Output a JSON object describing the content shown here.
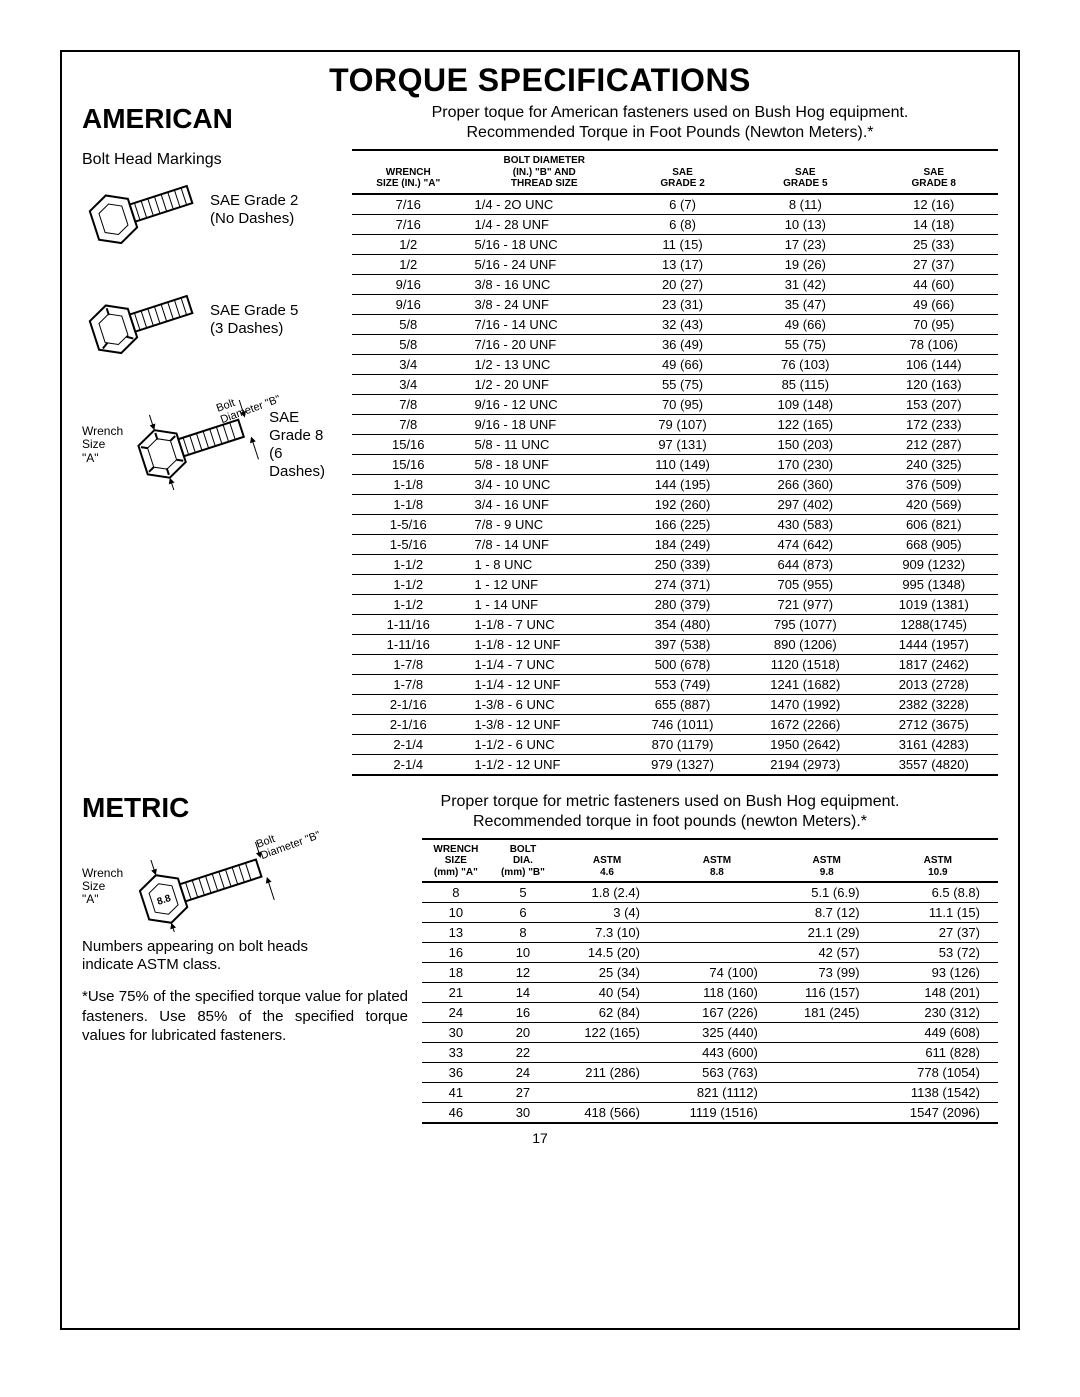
{
  "page_number": "17",
  "title": "TORQUE SPECIFICATIONS",
  "american": {
    "heading": "AMERICAN",
    "intro_line1": "Proper toque for American fasteners used on Bush Hog equipment.",
    "intro_line2": "Recommended Torque in Foot Pounds (Newton Meters).*",
    "bolt_head_label": "Bolt Head Markings",
    "grade2_label_a": "SAE Grade 2",
    "grade2_label_b": "(No Dashes)",
    "grade5_label_a": "SAE Grade 5",
    "grade5_label_b": "(3 Dashes)",
    "grade8_label_a": "SAE Grade 8",
    "grade8_label_b": "(6 Dashes)",
    "wrench_label_a": "Wrench",
    "wrench_label_b": "Size \"A\"",
    "diam_label_a": "Bolt",
    "diam_label_b": "Diameter \"B\"",
    "columns": {
      "c1a": "WRENCH",
      "c1b": "SIZE (IN.) \"A\"",
      "c2a": "BOLT DIAMETER",
      "c2b": "(IN.) \"B\" AND",
      "c2c": "THREAD SIZE",
      "c3a": "SAE",
      "c3b": "GRADE 2",
      "c4a": "SAE",
      "c4b": "GRADE 5",
      "c5a": "SAE",
      "c5b": "GRADE 8"
    },
    "rows": [
      [
        "7/16",
        "1/4 - 2O UNC",
        "6 (7)",
        "8 (11)",
        "12 (16)"
      ],
      [
        "7/16",
        "1/4 - 28 UNF",
        "6 (8)",
        "10 (13)",
        "14 (18)"
      ],
      [
        "1/2",
        "5/16 - 18 UNC",
        "11 (15)",
        "17 (23)",
        "25 (33)"
      ],
      [
        "1/2",
        "5/16 - 24 UNF",
        "13 (17)",
        "19 (26)",
        "27 (37)"
      ],
      [
        "9/16",
        "3/8 - 16 UNC",
        "20 (27)",
        "31 (42)",
        "44 (60)"
      ],
      [
        "9/16",
        "3/8 - 24 UNF",
        "23 (31)",
        "35 (47)",
        "49 (66)"
      ],
      [
        "5/8",
        "7/16 - 14 UNC",
        "32 (43)",
        "49 (66)",
        "70 (95)"
      ],
      [
        "5/8",
        "7/16 - 20 UNF",
        "36 (49)",
        "55 (75)",
        "78 (106)"
      ],
      [
        "3/4",
        "1/2 - 13 UNC",
        "49 (66)",
        "76 (103)",
        "106 (144)"
      ],
      [
        "3/4",
        "1/2 - 20 UNF",
        "55 (75)",
        "85 (115)",
        "120 (163)"
      ],
      [
        "7/8",
        "9/16 - 12 UNC",
        "70 (95)",
        "109 (148)",
        "153 (207)"
      ],
      [
        "7/8",
        "9/16 - 18 UNF",
        "79 (107)",
        "122 (165)",
        "172 (233)"
      ],
      [
        "15/16",
        "5/8 - 11 UNC",
        "97 (131)",
        "150 (203)",
        "212 (287)"
      ],
      [
        "15/16",
        "5/8 - 18 UNF",
        "110 (149)",
        "170 (230)",
        "240 (325)"
      ],
      [
        "1-1/8",
        "3/4 - 10 UNC",
        "144 (195)",
        "266 (360)",
        "376 (509)"
      ],
      [
        "1-1/8",
        "3/4 - 16 UNF",
        "192 (260)",
        "297 (402)",
        "420 (569)"
      ],
      [
        "1-5/16",
        "7/8 - 9 UNC",
        "166 (225)",
        "430 (583)",
        "606 (821)"
      ],
      [
        "1-5/16",
        "7/8 - 14 UNF",
        "184 (249)",
        "474 (642)",
        "668 (905)"
      ],
      [
        "1-1/2",
        "1 - 8 UNC",
        "250 (339)",
        "644 (873)",
        "909 (1232)"
      ],
      [
        "1-1/2",
        "1 - 12 UNF",
        "274 (371)",
        "705 (955)",
        "995 (1348)"
      ],
      [
        "1-1/2",
        "1 - 14 UNF",
        "280 (379)",
        "721 (977)",
        "1019 (1381)"
      ],
      [
        "1-11/16",
        "1-1/8 - 7 UNC",
        "354 (480)",
        "795 (1077)",
        "1288(1745)"
      ],
      [
        "1-11/16",
        "1-1/8 - 12 UNF",
        "397 (538)",
        "890 (1206)",
        "1444 (1957)"
      ],
      [
        "1-7/8",
        "1-1/4 - 7 UNC",
        "500 (678)",
        "1120 (1518)",
        "1817 (2462)"
      ],
      [
        "1-7/8",
        "1-1/4 - 12 UNF",
        "553 (749)",
        "1241 (1682)",
        "2013 (2728)"
      ],
      [
        "2-1/16",
        "1-3/8 - 6 UNC",
        "655 (887)",
        "1470 (1992)",
        "2382 (3228)"
      ],
      [
        "2-1/16",
        "1-3/8 - 12 UNF",
        "746 (1011)",
        "1672 (2266)",
        "2712 (3675)"
      ],
      [
        "2-1/4",
        "1-1/2 - 6 UNC",
        "870 (1179)",
        "1950 (2642)",
        "3161 (4283)"
      ],
      [
        "2-1/4",
        "1-1/2 - 12 UNF",
        "979 (1327)",
        "2194 (2973)",
        "3557 (4820)"
      ]
    ]
  },
  "metric": {
    "heading": "METRIC",
    "intro_line1": "Proper torque for metric fasteners used on Bush Hog equipment.",
    "intro_line2": "Recommended torque in foot pounds (newton Meters).*",
    "bolt_number": "8.8",
    "note_line1": "Numbers appearing on bolt heads",
    "note_line2": "indicate ASTM class.",
    "footnote": "*Use 75% of the specified torque value for plated fasteners.  Use 85% of the specified torque values for lubricated fasteners.",
    "columns": {
      "c1a": "WRENCH",
      "c1b": "SIZE",
      "c1c": "(mm) \"A\"",
      "c2a": "BOLT",
      "c2b": "DIA.",
      "c2c": "(mm) \"B\"",
      "c3a": "ASTM",
      "c3b": "4.6",
      "c4a": "ASTM",
      "c4b": "8.8",
      "c5a": "ASTM",
      "c5b": "9.8",
      "c6a": "ASTM",
      "c6b": "10.9"
    },
    "rows": [
      [
        "8",
        "5",
        "1.8 (2.4)",
        "",
        "5.1 (6.9)",
        "6.5 (8.8)"
      ],
      [
        "10",
        "6",
        "3 (4)",
        "",
        "8.7 (12)",
        "11.1 (15)"
      ],
      [
        "13",
        "8",
        "7.3 (10)",
        "",
        "21.1 (29)",
        "27 (37)"
      ],
      [
        "16",
        "10",
        "14.5 (20)",
        "",
        "42 (57)",
        "53 (72)"
      ],
      [
        "18",
        "12",
        "25 (34)",
        "74 (100)",
        "73 (99)",
        "93 (126)"
      ],
      [
        "21",
        "14",
        "40 (54)",
        "118 (160)",
        "116 (157)",
        "148 (201)"
      ],
      [
        "24",
        "16",
        "62 (84)",
        "167 (226)",
        "181 (245)",
        "230 (312)"
      ],
      [
        "30",
        "20",
        "122 (165)",
        "325 (440)",
        "",
        "449 (608)"
      ],
      [
        "33",
        "22",
        "",
        "443 (600)",
        "",
        "611 (828)"
      ],
      [
        "36",
        "24",
        "211 (286)",
        "563 (763)",
        "",
        "778 (1054)"
      ],
      [
        "41",
        "27",
        "",
        "821 (1112)",
        "",
        "1138 (1542)"
      ],
      [
        "46",
        "30",
        "418 (566)",
        "1119 (1516)",
        "",
        "1547 (2096)"
      ]
    ]
  }
}
